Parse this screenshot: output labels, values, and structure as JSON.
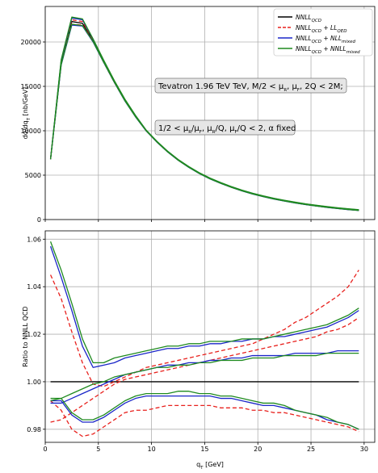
{
  "chart_data": [
    {
      "type": "line",
      "ylabel": "dσ/dq_T [nb/GeV]",
      "xlim": [
        0,
        31
      ],
      "ylim": [
        0,
        24000
      ],
      "xticks": [
        0,
        5,
        10,
        15,
        20,
        25,
        30
      ],
      "yticks": [
        0,
        5000,
        10000,
        15000,
        20000
      ],
      "ytick_labels": [
        "0",
        "5000",
        "10000",
        "15000",
        "20000"
      ],
      "grid": true,
      "legend_position": "top-right",
      "legend": [
        {
          "label": "NNLL_QCD",
          "color": "#000000",
          "dash": "solid"
        },
        {
          "label": "NNLL_QCD + LL_QED",
          "color": "#e8201c",
          "dash": "dashed"
        },
        {
          "label": "NNLL_QCD + NLL_mixed",
          "color": "#1a26c8",
          "dash": "solid"
        },
        {
          "label": "NNLL_QCD + NNLL_mixed",
          "color": "#1f8a1f",
          "dash": "solid"
        }
      ],
      "annotations": [
        "Tevatron 1.96 TeV TeV, M/2 < μ_R, μ_F, 2Q < 2M;",
        "1/2 < μ_R/μ_F, μ_R/Q, μ_F/Q < 2, α fixed"
      ],
      "x": [
        0.5,
        1.5,
        2.5,
        3.5,
        4.5,
        5.5,
        6.5,
        7.5,
        8.5,
        9.5,
        10.5,
        11.5,
        12.5,
        13.5,
        14.5,
        15.5,
        16.5,
        17.5,
        18.5,
        19.5,
        20.5,
        21.5,
        22.5,
        23.5,
        24.5,
        25.5,
        26.5,
        27.5,
        28.5,
        29.5
      ],
      "series": [
        {
          "color": "#000000",
          "dash": "solid",
          "values": [
            6800,
            17600,
            22300,
            22100,
            20200,
            17800,
            15500,
            13400,
            11600,
            10000,
            8750,
            7650,
            6700,
            5900,
            5200,
            4600,
            4100,
            3650,
            3250,
            2900,
            2600,
            2330,
            2100,
            1890,
            1700,
            1540,
            1390,
            1260,
            1140,
            1040
          ]
        },
        {
          "color": "#e8201c",
          "dash": "dashed",
          "values": [
            6800,
            17500,
            22000,
            21900,
            20100,
            17700,
            15450,
            13380,
            11590,
            10000,
            8750,
            7650,
            6700,
            5900,
            5200,
            4600,
            4100,
            3650,
            3250,
            2900,
            2600,
            2330,
            2100,
            1890,
            1700,
            1540,
            1390,
            1260,
            1140,
            1040
          ]
        },
        {
          "color": "#e8201c",
          "dash": "dashed",
          "values": [
            6800,
            17800,
            22500,
            22300,
            20300,
            17850,
            15550,
            13450,
            11640,
            10030,
            8780,
            7680,
            6730,
            5930,
            5230,
            4630,
            4130,
            3680,
            3280,
            2930,
            2630,
            2360,
            2130,
            1920,
            1730,
            1570,
            1420,
            1290,
            1170,
            1070
          ]
        },
        {
          "color": "#1a26c8",
          "dash": "solid",
          "values": [
            6800,
            17900,
            22700,
            22500,
            20300,
            17900,
            15600,
            13500,
            11700,
            10050,
            8800,
            7700,
            6750,
            5950,
            5250,
            4650,
            4150,
            3700,
            3300,
            2950,
            2650,
            2380,
            2150,
            1940,
            1750,
            1590,
            1440,
            1310,
            1190,
            1090
          ]
        },
        {
          "color": "#1a26c8",
          "dash": "solid",
          "values": [
            6800,
            17400,
            21900,
            21800,
            20000,
            17700,
            15450,
            13350,
            11550,
            9980,
            8730,
            7630,
            6680,
            5880,
            5180,
            4580,
            4080,
            3630,
            3230,
            2880,
            2580,
            2310,
            2080,
            1870,
            1680,
            1520,
            1370,
            1240,
            1120,
            1020
          ]
        },
        {
          "color": "#1f8a1f",
          "dash": "solid",
          "values": [
            6800,
            18000,
            22800,
            22600,
            20350,
            17950,
            15650,
            13550,
            11720,
            10070,
            8820,
            7720,
            6770,
            5970,
            5270,
            4670,
            4170,
            3720,
            3320,
            2970,
            2670,
            2400,
            2170,
            1960,
            1770,
            1610,
            1460,
            1330,
            1210,
            1110
          ]
        },
        {
          "color": "#1f8a1f",
          "dash": "solid",
          "values": [
            6800,
            17450,
            22000,
            21850,
            20050,
            17720,
            15470,
            13370,
            11570,
            9990,
            8740,
            7640,
            6690,
            5890,
            5190,
            4590,
            4090,
            3640,
            3240,
            2890,
            2590,
            2320,
            2090,
            1880,
            1690,
            1530,
            1380,
            1250,
            1130,
            1030
          ]
        }
      ]
    },
    {
      "type": "line",
      "xlabel": "q_T [GeV]",
      "ylabel": "Ratio to NNLL QCD",
      "xlim": [
        0,
        31
      ],
      "ylim": [
        0.9745,
        1.0635
      ],
      "xticks": [
        0,
        5,
        10,
        15,
        20,
        25,
        30
      ],
      "yticks": [
        0.98,
        1.0,
        1.02,
        1.04,
        1.06
      ],
      "ytick_labels": [
        "0.98",
        "1.00",
        "1.02",
        "1.04",
        "1.06"
      ],
      "grid": true,
      "reference_line": {
        "value": 1.0,
        "color": "#000000"
      },
      "x": [
        0.5,
        1.5,
        2.5,
        3.5,
        4.5,
        5.5,
        6.5,
        7.5,
        8.5,
        9.5,
        10.5,
        11.5,
        12.5,
        13.5,
        14.5,
        15.5,
        16.5,
        17.5,
        18.5,
        19.5,
        20.5,
        21.5,
        22.5,
        23.5,
        24.5,
        25.5,
        26.5,
        27.5,
        28.5,
        29.5
      ],
      "series": [
        {
          "color": "#e8201c",
          "dash": "dashed",
          "values": [
            1.045,
            1.035,
            1.021,
            1.008,
            0.999,
            0.998,
            1.0,
            1.002,
            1.004,
            1.006,
            1.007,
            1.008,
            1.009,
            1.01,
            1.011,
            1.012,
            1.013,
            1.014,
            1.015,
            1.016,
            1.018,
            1.02,
            1.022,
            1.025,
            1.027,
            1.03,
            1.033,
            1.036,
            1.04,
            1.047
          ]
        },
        {
          "color": "#e8201c",
          "dash": "dashed",
          "values": [
            0.983,
            0.984,
            0.987,
            0.99,
            0.993,
            0.996,
            0.999,
            1.001,
            1.002,
            1.003,
            1.004,
            1.005,
            1.006,
            1.007,
            1.008,
            1.009,
            1.01,
            1.011,
            1.012,
            1.013,
            1.014,
            1.015,
            1.016,
            1.017,
            1.018,
            1.019,
            1.021,
            1.022,
            1.024,
            1.027
          ]
        },
        {
          "color": "#e8201c",
          "dash": "dashed",
          "values": [
            0.992,
            0.988,
            0.98,
            0.977,
            0.978,
            0.981,
            0.984,
            0.987,
            0.988,
            0.988,
            0.989,
            0.99,
            0.99,
            0.99,
            0.99,
            0.99,
            0.989,
            0.989,
            0.989,
            0.988,
            0.988,
            0.987,
            0.987,
            0.986,
            0.985,
            0.984,
            0.983,
            0.982,
            0.981,
            0.979
          ]
        },
        {
          "color": "#1a26c8",
          "dash": "solid",
          "values": [
            1.057,
            1.044,
            1.03,
            1.015,
            1.006,
            1.007,
            1.008,
            1.01,
            1.011,
            1.012,
            1.013,
            1.014,
            1.014,
            1.015,
            1.015,
            1.016,
            1.016,
            1.017,
            1.017,
            1.018,
            1.018,
            1.019,
            1.019,
            1.02,
            1.021,
            1.022,
            1.023,
            1.025,
            1.027,
            1.03
          ]
        },
        {
          "color": "#1a26c8",
          "dash": "solid",
          "values": [
            0.991,
            0.991,
            0.993,
            0.995,
            0.997,
            0.999,
            1.001,
            1.003,
            1.004,
            1.005,
            1.006,
            1.007,
            1.007,
            1.008,
            1.008,
            1.009,
            1.009,
            1.01,
            1.01,
            1.011,
            1.011,
            1.011,
            1.011,
            1.012,
            1.012,
            1.012,
            1.012,
            1.013,
            1.013,
            1.013
          ]
        },
        {
          "color": "#1a26c8",
          "dash": "solid",
          "values": [
            0.992,
            0.992,
            0.986,
            0.983,
            0.983,
            0.985,
            0.988,
            0.991,
            0.993,
            0.994,
            0.994,
            0.994,
            0.994,
            0.994,
            0.994,
            0.994,
            0.993,
            0.993,
            0.992,
            0.991,
            0.99,
            0.99,
            0.989,
            0.988,
            0.987,
            0.986,
            0.984,
            0.983,
            0.982,
            0.98
          ]
        },
        {
          "color": "#1f8a1f",
          "dash": "solid",
          "values": [
            1.059,
            1.047,
            1.033,
            1.018,
            1.008,
            1.008,
            1.01,
            1.011,
            1.012,
            1.013,
            1.014,
            1.015,
            1.015,
            1.016,
            1.016,
            1.017,
            1.017,
            1.017,
            1.018,
            1.018,
            1.018,
            1.019,
            1.02,
            1.021,
            1.022,
            1.023,
            1.024,
            1.026,
            1.028,
            1.031
          ]
        },
        {
          "color": "#1f8a1f",
          "dash": "solid",
          "values": [
            0.992,
            0.993,
            0.995,
            0.997,
            0.999,
            1.0,
            1.002,
            1.003,
            1.004,
            1.005,
            1.006,
            1.006,
            1.007,
            1.007,
            1.008,
            1.008,
            1.009,
            1.009,
            1.009,
            1.01,
            1.01,
            1.01,
            1.011,
            1.011,
            1.011,
            1.011,
            1.012,
            1.012,
            1.012,
            1.012
          ]
        },
        {
          "color": "#1f8a1f",
          "dash": "solid",
          "values": [
            0.993,
            0.993,
            0.987,
            0.984,
            0.984,
            0.986,
            0.989,
            0.992,
            0.994,
            0.995,
            0.995,
            0.995,
            0.996,
            0.996,
            0.995,
            0.995,
            0.994,
            0.994,
            0.993,
            0.992,
            0.991,
            0.991,
            0.99,
            0.988,
            0.987,
            0.986,
            0.985,
            0.983,
            0.982,
            0.98
          ]
        }
      ]
    }
  ]
}
